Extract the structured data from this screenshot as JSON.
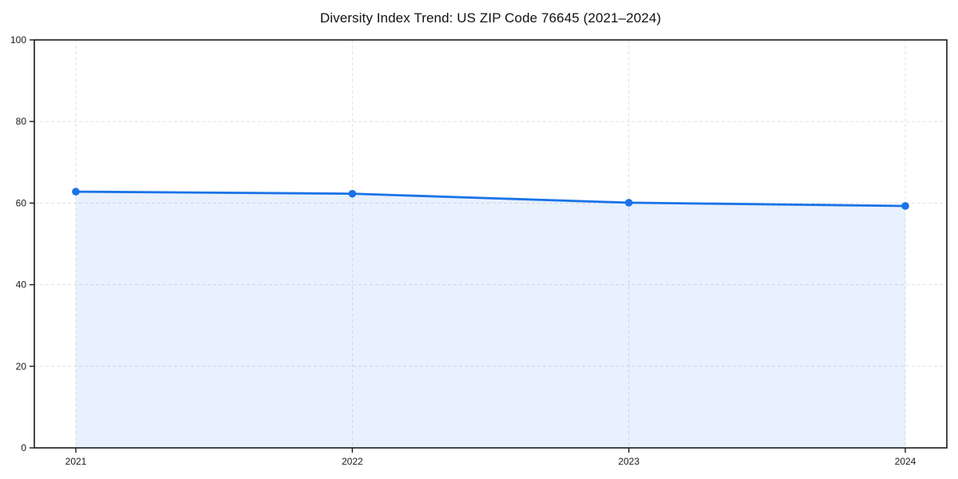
{
  "page": {
    "background": "#ffffff"
  },
  "chart_data": {
    "type": "area",
    "title": "Diversity Index Trend: US ZIP Code 76645 (2021–2024)",
    "categories": [
      "2021",
      "2022",
      "2023",
      "2024"
    ],
    "values": [
      62.8,
      62.3,
      60.1,
      59.3
    ],
    "xlabel": "",
    "ylabel": "",
    "ylim": [
      0,
      100
    ],
    "yticks": [
      0,
      20,
      40,
      60,
      80,
      100
    ],
    "grid": true,
    "grid_style": "dashed",
    "legend_position": "none",
    "line_color": "#1a73e8",
    "marker_color": "#1a73e8",
    "fill_color": "#1a73e8",
    "fill_opacity": 0.1,
    "grid_color": "#e0e0e0",
    "spine_color": "#1a1a1a",
    "text_color": "#1a1a1a"
  }
}
